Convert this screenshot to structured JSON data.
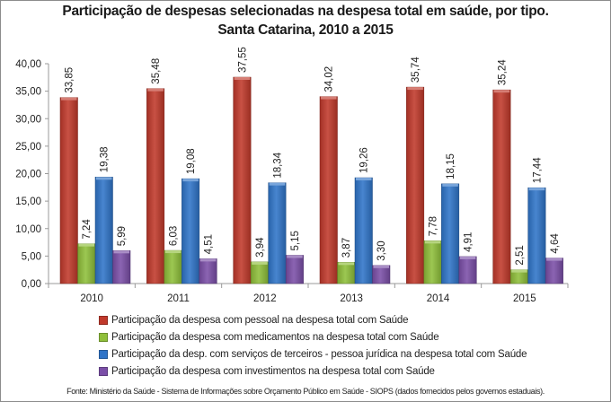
{
  "chart_data": {
    "type": "bar",
    "title": "Participação de despesas selecionadas na despesa total em saúde, por tipo.",
    "subtitle": "Santa Catarina, 2010 a 2015",
    "xlabel": "",
    "ylabel": "",
    "ylim": [
      0,
      40
    ],
    "yticks": [
      0,
      5,
      10,
      15,
      20,
      25,
      30,
      35,
      40
    ],
    "ytick_labels": [
      "0,00",
      "5,00",
      "10,00",
      "15,00",
      "20,00",
      "25,00",
      "30,00",
      "35,00",
      "40,00"
    ],
    "grid": false,
    "legend_position": "bottom",
    "categories": [
      "2010",
      "2011",
      "2012",
      "2013",
      "2014",
      "2015"
    ],
    "series": [
      {
        "name": "Participação da despesa com pessoal na despesa total com Saúde",
        "color": "#c0392b",
        "values": [
          33.85,
          35.48,
          37.55,
          34.02,
          35.74,
          35.24
        ],
        "labels": [
          "33,85",
          "35,48",
          "37,55",
          "34,02",
          "35,74",
          "35,24"
        ]
      },
      {
        "name": "Participação da despesa com medicamentos na despesa total com Saúde",
        "color": "#8fbf3a",
        "values": [
          7.24,
          6.03,
          3.94,
          3.87,
          7.78,
          2.51
        ],
        "labels": [
          "7,24",
          "6,03",
          "3,94",
          "3,87",
          "7,78",
          "2,51"
        ]
      },
      {
        "name": "Participação da desp. com serviços de terceiros - pessoa jurídica na despesa total com Saúde",
        "color": "#2f74c8",
        "values": [
          19.38,
          19.08,
          18.34,
          19.26,
          18.15,
          17.44
        ],
        "labels": [
          "19,38",
          "19,08",
          "18,34",
          "19,26",
          "18,15",
          "17,44"
        ]
      },
      {
        "name": "Participação da despesa com investimentos na despesa total com Saúde",
        "color": "#7b4fa8",
        "values": [
          5.99,
          4.51,
          5.15,
          3.3,
          4.91,
          4.64
        ],
        "labels": [
          "5,99",
          "4,51",
          "5,15",
          "3,30",
          "4,91",
          "4,64"
        ]
      }
    ]
  },
  "source": "Fonte: Ministério da Saúde - Sistema de Informações sobre Orçamento Público em Saúde - SIOPS (dados fornecidos pelos governos estaduais)."
}
